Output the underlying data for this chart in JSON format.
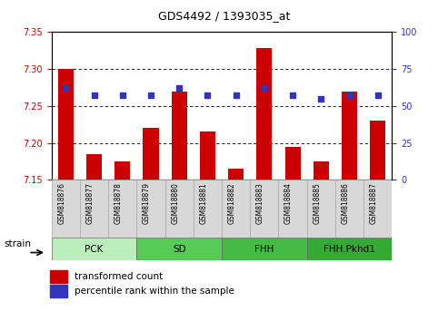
{
  "title": "GDS4492 / 1393035_at",
  "samples": [
    "GSM818876",
    "GSM818877",
    "GSM818878",
    "GSM818879",
    "GSM818880",
    "GSM818881",
    "GSM818882",
    "GSM818883",
    "GSM818884",
    "GSM818885",
    "GSM818886",
    "GSM818887"
  ],
  "transformed_count": [
    7.3,
    7.185,
    7.175,
    7.22,
    7.27,
    7.215,
    7.165,
    7.328,
    7.195,
    7.175,
    7.27,
    7.23
  ],
  "percentile_rank": [
    62,
    57,
    57,
    57,
    62,
    57,
    57,
    62,
    57,
    55,
    57,
    57
  ],
  "ylim_left": [
    7.15,
    7.35
  ],
  "ylim_right": [
    0,
    100
  ],
  "yticks_left": [
    7.15,
    7.2,
    7.25,
    7.3,
    7.35
  ],
  "yticks_right": [
    0,
    25,
    50,
    75,
    100
  ],
  "bar_color": "#cc0000",
  "dot_color": "#3333bb",
  "bar_bottom": 7.15,
  "groups": [
    {
      "label": "PCK",
      "start": 0,
      "end": 3,
      "color": "#bbeebb"
    },
    {
      "label": "SD",
      "start": 3,
      "end": 6,
      "color": "#55cc55"
    },
    {
      "label": "FHH",
      "start": 6,
      "end": 9,
      "color": "#44bb44"
    },
    {
      "label": "FHH.Pkhd1",
      "start": 9,
      "end": 12,
      "color": "#33aa33"
    }
  ],
  "strain_label": "strain",
  "left_axis_color": "#cc0000",
  "right_axis_color": "#3333bb",
  "legend_items": [
    {
      "label": "transformed count",
      "color": "#cc0000"
    },
    {
      "label": "percentile rank within the sample",
      "color": "#3333bb"
    }
  ]
}
